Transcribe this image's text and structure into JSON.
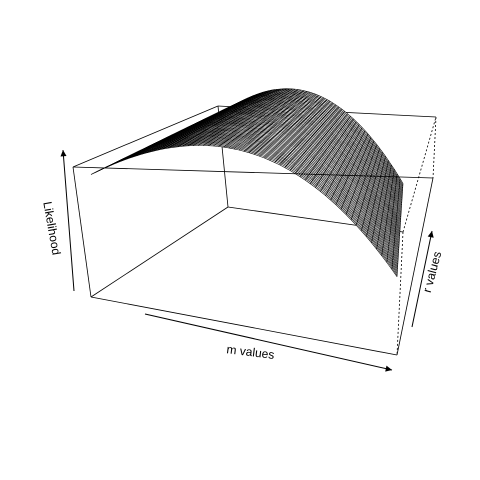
{
  "chart_data": {
    "type": "surface-3d",
    "xlabel": "m values",
    "ylabel": "r values",
    "zlabel": "Likelihood",
    "grid": false,
    "colors": {
      "mesh": "#000000",
      "box": "#000000",
      "background": "#ffffff"
    }
  }
}
